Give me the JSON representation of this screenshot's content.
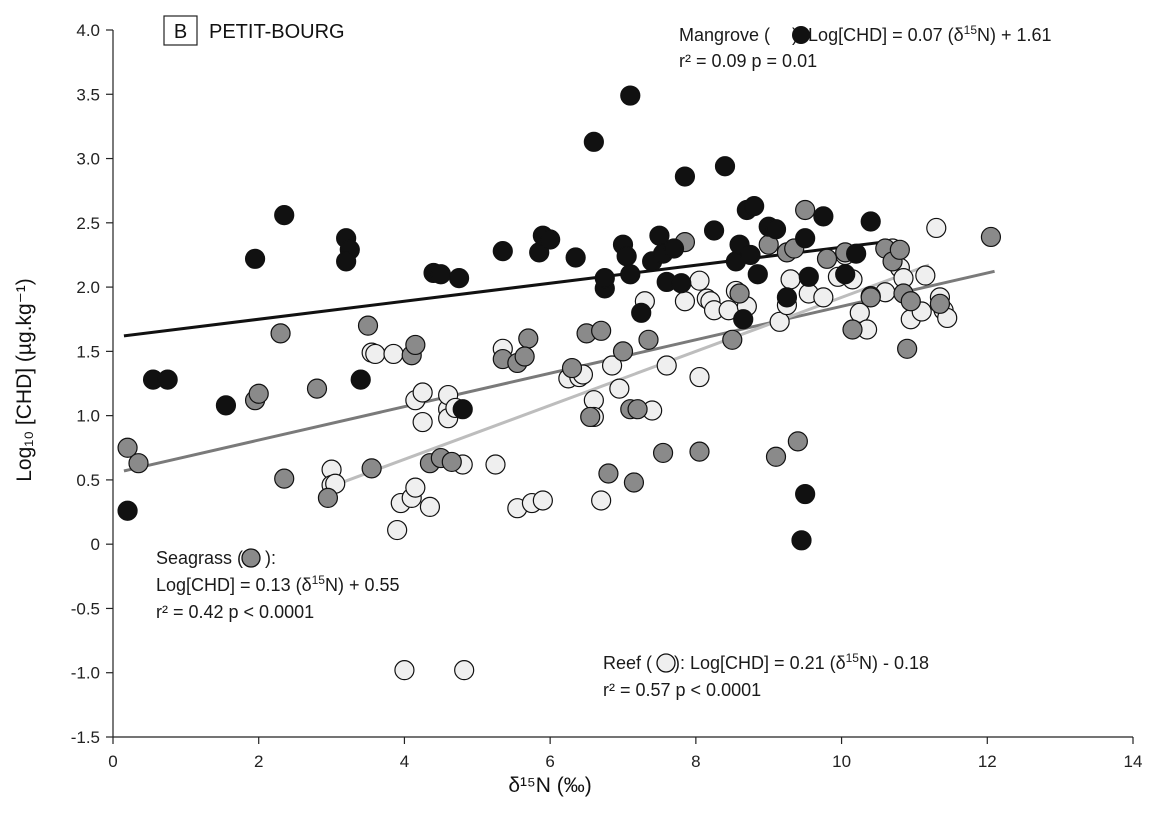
{
  "chart_data": {
    "type": "scatter",
    "panel_letter": "B",
    "title": "PETIT-BOURG",
    "xlabel": "δ¹⁵N (‰)",
    "ylabel": "Log₁₀ [CHD] (µg.kg⁻¹)",
    "xlim": [
      0,
      14
    ],
    "ylim": [
      -1.5,
      4.0
    ],
    "xticks": [
      0,
      2,
      4,
      6,
      8,
      10,
      12,
      14
    ],
    "yticks": [
      -1.5,
      -1.0,
      -0.5,
      0,
      0.5,
      1.0,
      1.5,
      2.0,
      2.5,
      3.0,
      3.5,
      4.0
    ],
    "ytick_labels": [
      "-1.5",
      "-1.0",
      "-0.5",
      "0",
      "0.5",
      "1.0",
      "1.5",
      "2.0",
      "2.5",
      "3.0",
      "3.5",
      "4.0"
    ],
    "grid": false,
    "series": [
      {
        "key": "mangrove",
        "fill": "#111111",
        "fit": {
          "slope": 0.07,
          "intercept": 1.61,
          "x_range": [
            0.15,
            10.7
          ],
          "color": "#111111"
        },
        "annotation": {
          "prefix": "Mangrove (",
          "suffix": "): Log[CHD] = 0.07 (δ",
          "sup": "15",
          "tail": "N) + 1.61",
          "line2": "r² = 0.09   p = 0.01"
        },
        "points": [
          [
            0.2,
            0.26
          ],
          [
            0.55,
            1.28
          ],
          [
            0.75,
            1.28
          ],
          [
            1.55,
            1.08
          ],
          [
            1.95,
            2.22
          ],
          [
            2.35,
            2.56
          ],
          [
            3.2,
            2.38
          ],
          [
            3.25,
            2.29
          ],
          [
            3.2,
            2.2
          ],
          [
            3.4,
            1.28
          ],
          [
            4.4,
            2.11
          ],
          [
            4.5,
            2.1
          ],
          [
            4.75,
            2.07
          ],
          [
            4.8,
            1.05
          ],
          [
            5.35,
            2.28
          ],
          [
            5.85,
            2.27
          ],
          [
            5.9,
            2.4
          ],
          [
            6.0,
            2.37
          ],
          [
            6.35,
            2.23
          ],
          [
            6.6,
            3.13
          ],
          [
            6.75,
            1.99
          ],
          [
            6.75,
            2.07
          ],
          [
            7.0,
            2.33
          ],
          [
            7.05,
            2.24
          ],
          [
            7.1,
            3.49
          ],
          [
            7.1,
            2.1
          ],
          [
            7.25,
            1.8
          ],
          [
            7.4,
            2.2
          ],
          [
            7.5,
            2.4
          ],
          [
            7.55,
            2.26
          ],
          [
            7.6,
            2.04
          ],
          [
            7.7,
            2.3
          ],
          [
            7.8,
            2.03
          ],
          [
            7.85,
            2.86
          ],
          [
            8.25,
            2.44
          ],
          [
            8.4,
            2.94
          ],
          [
            8.55,
            2.2
          ],
          [
            8.6,
            2.33
          ],
          [
            8.65,
            1.75
          ],
          [
            8.7,
            2.6
          ],
          [
            8.75,
            2.25
          ],
          [
            8.8,
            2.63
          ],
          [
            8.85,
            2.1
          ],
          [
            9.0,
            2.47
          ],
          [
            9.1,
            2.45
          ],
          [
            9.25,
            1.92
          ],
          [
            9.5,
            2.38
          ],
          [
            9.55,
            2.08
          ],
          [
            9.75,
            2.55
          ],
          [
            10.05,
            2.1
          ],
          [
            10.2,
            2.26
          ],
          [
            10.4,
            2.51
          ],
          [
            9.5,
            0.39
          ],
          [
            9.45,
            0.03
          ]
        ]
      },
      {
        "key": "seagrass",
        "fill": "#8a8a8a",
        "fit": {
          "slope": 0.13,
          "intercept": 0.55,
          "x_range": [
            0.15,
            12.1
          ],
          "color": "#7a7a7a"
        },
        "annotation": {
          "line1_prefix": "Seagrass (",
          "line1_suffix": "):",
          "line2_prefix": "Log[CHD] = 0.13 (δ",
          "sup": "15",
          "line2_tail": "N) + 0.55",
          "line3": "r² = 0.42   p < 0.0001"
        },
        "points": [
          [
            0.2,
            0.75
          ],
          [
            0.35,
            0.63
          ],
          [
            1.95,
            1.12
          ],
          [
            2.0,
            1.17
          ],
          [
            2.3,
            1.64
          ],
          [
            2.35,
            0.51
          ],
          [
            2.8,
            1.21
          ],
          [
            2.95,
            0.36
          ],
          [
            3.5,
            1.7
          ],
          [
            3.55,
            0.59
          ],
          [
            4.1,
            1.47
          ],
          [
            4.15,
            1.55
          ],
          [
            4.35,
            0.63
          ],
          [
            4.5,
            0.67
          ],
          [
            4.65,
            0.64
          ],
          [
            5.35,
            1.44
          ],
          [
            5.55,
            1.41
          ],
          [
            5.7,
            1.6
          ],
          [
            5.65,
            1.46
          ],
          [
            6.3,
            1.37
          ],
          [
            6.5,
            1.64
          ],
          [
            6.55,
            0.99
          ],
          [
            6.7,
            1.66
          ],
          [
            6.8,
            0.55
          ],
          [
            7.0,
            1.5
          ],
          [
            7.1,
            1.05
          ],
          [
            7.15,
            0.48
          ],
          [
            7.2,
            1.05
          ],
          [
            7.35,
            1.59
          ],
          [
            7.55,
            0.71
          ],
          [
            7.85,
            2.35
          ],
          [
            8.05,
            0.72
          ],
          [
            8.5,
            1.59
          ],
          [
            8.6,
            1.95
          ],
          [
            9.0,
            2.33
          ],
          [
            9.1,
            0.68
          ],
          [
            9.25,
            2.27
          ],
          [
            9.35,
            2.3
          ],
          [
            9.4,
            0.8
          ],
          [
            9.5,
            2.6
          ],
          [
            9.8,
            2.22
          ],
          [
            10.05,
            2.27
          ],
          [
            10.15,
            1.67
          ],
          [
            10.4,
            1.93
          ],
          [
            10.6,
            2.3
          ],
          [
            10.7,
            2.2
          ],
          [
            10.8,
            2.29
          ],
          [
            10.85,
            1.95
          ],
          [
            10.9,
            1.52
          ],
          [
            10.95,
            1.89
          ],
          [
            11.35,
            1.87
          ],
          [
            12.05,
            2.39
          ],
          [
            10.4,
            1.92
          ]
        ]
      },
      {
        "key": "reef",
        "fill": "#efefef",
        "fit": {
          "slope": 0.21,
          "intercept": -0.18,
          "x_range": [
            3.0,
            11.2
          ],
          "color": "#bdbdbd"
        },
        "annotation": {
          "prefix": "Reef (",
          "suffix": "): Log[CHD] = 0.21 (δ",
          "sup": "15",
          "tail": "N) - 0.18",
          "line2": "r² = 0.57   p < 0.0001"
        },
        "points": [
          [
            3.0,
            0.58
          ],
          [
            3.0,
            0.46
          ],
          [
            3.05,
            0.47
          ],
          [
            3.55,
            1.49
          ],
          [
            3.6,
            1.48
          ],
          [
            3.85,
            1.48
          ],
          [
            3.9,
            0.11
          ],
          [
            3.95,
            0.32
          ],
          [
            4.0,
            -0.98
          ],
          [
            4.1,
            0.36
          ],
          [
            4.15,
            0.44
          ],
          [
            4.15,
            1.12
          ],
          [
            4.25,
            1.18
          ],
          [
            4.25,
            0.95
          ],
          [
            4.35,
            0.29
          ],
          [
            4.6,
            1.05
          ],
          [
            4.6,
            1.16
          ],
          [
            4.6,
            0.98
          ],
          [
            4.7,
            1.06
          ],
          [
            4.8,
            0.62
          ],
          [
            4.82,
            -0.98
          ],
          [
            5.25,
            0.62
          ],
          [
            5.35,
            1.52
          ],
          [
            5.55,
            0.28
          ],
          [
            5.75,
            0.32
          ],
          [
            5.9,
            0.34
          ],
          [
            6.25,
            1.29
          ],
          [
            6.4,
            1.3
          ],
          [
            6.45,
            1.32
          ],
          [
            6.6,
            1.12
          ],
          [
            6.6,
            0.99
          ],
          [
            6.7,
            0.34
          ],
          [
            6.85,
            1.39
          ],
          [
            6.95,
            1.21
          ],
          [
            7.3,
            1.89
          ],
          [
            7.4,
            1.04
          ],
          [
            7.6,
            1.39
          ],
          [
            7.85,
            1.89
          ],
          [
            8.05,
            1.3
          ],
          [
            8.05,
            2.05
          ],
          [
            8.15,
            1.91
          ],
          [
            8.2,
            1.89
          ],
          [
            8.25,
            1.82
          ],
          [
            8.45,
            1.82
          ],
          [
            8.55,
            1.97
          ],
          [
            8.7,
            1.85
          ],
          [
            9.15,
            1.73
          ],
          [
            9.25,
            1.86
          ],
          [
            9.3,
            2.06
          ],
          [
            9.55,
            1.95
          ],
          [
            9.75,
            1.92
          ],
          [
            9.95,
            2.08
          ],
          [
            10.05,
            2.25
          ],
          [
            10.15,
            2.06
          ],
          [
            10.25,
            1.8
          ],
          [
            10.35,
            1.67
          ],
          [
            10.6,
            1.96
          ],
          [
            10.8,
            2.15
          ],
          [
            10.85,
            2.07
          ],
          [
            10.95,
            1.75
          ],
          [
            11.1,
            1.81
          ],
          [
            11.15,
            2.09
          ],
          [
            11.3,
            2.46
          ],
          [
            11.35,
            1.92
          ],
          [
            11.4,
            1.82
          ],
          [
            11.45,
            1.76
          ],
          [
            10.7,
            2.3
          ]
        ]
      }
    ]
  }
}
